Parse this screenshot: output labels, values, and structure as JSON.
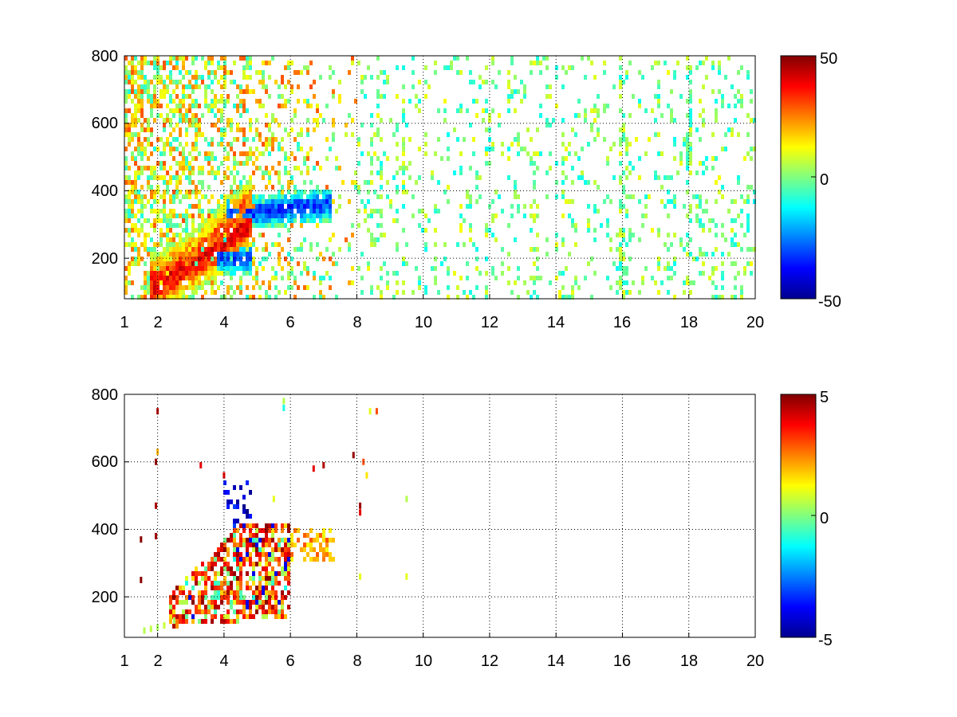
{
  "chart_data": [
    {
      "type": "heatmap",
      "title": "",
      "xlabel": "",
      "ylabel": "",
      "xlim": [
        1,
        20
      ],
      "ylim": [
        80,
        800
      ],
      "grid": "dotted",
      "x_ticks": [
        "1",
        "2",
        "4",
        "6",
        "8",
        "10",
        "12",
        "14",
        "16",
        "18",
        "20"
      ],
      "y_ticks": [
        "200",
        "400",
        "600",
        "800"
      ],
      "colorbar": {
        "range": [
          -50,
          50
        ],
        "ticks": [
          "50",
          "0",
          "-50"
        ],
        "colormap": "jet"
      },
      "seed": 7,
      "ridges": [
        {
          "x_from": 2.0,
          "x_to": 4.8,
          "y_from": 120,
          "y_to": 300,
          "value": 38,
          "width": 70
        },
        {
          "x_from": 3.0,
          "x_to": 4.8,
          "y_from": 190,
          "y_to": 360,
          "value": 30,
          "width": 60
        },
        {
          "x_from": 4.0,
          "x_to": 4.8,
          "y_from": 200,
          "y_to": 200,
          "value": -30,
          "width": 35
        },
        {
          "x_from": 4.3,
          "x_to": 7.2,
          "y_from": 330,
          "y_to": 360,
          "value": -32,
          "width": 35
        }
      ],
      "diffuse_region": {
        "x_from": 1.0,
        "x_to": 8.0,
        "y_from": 80,
        "y_to": 800,
        "value_range": [
          -10,
          30
        ]
      },
      "sparse_value_range": [
        -12,
        12
      ],
      "vertical_streak_x": [
        1.9,
        4.8,
        5.9,
        7.9,
        8.7,
        9.4,
        11.9,
        14.2,
        15.2,
        16.0,
        18.0,
        19.8
      ]
    },
    {
      "type": "heatmap",
      "title": "",
      "xlabel": "",
      "ylabel": "",
      "xlim": [
        1,
        20
      ],
      "ylim": [
        80,
        800
      ],
      "grid": "dotted",
      "x_ticks": [
        "1",
        "2",
        "4",
        "6",
        "8",
        "10",
        "12",
        "14",
        "16",
        "18",
        "20"
      ],
      "y_ticks": [
        "200",
        "400",
        "600",
        "800"
      ],
      "colorbar": {
        "range": [
          -5,
          5
        ],
        "ticks": [
          "5",
          "0",
          "-5"
        ],
        "colormap": "jet"
      },
      "seed": 13,
      "dense_region": {
        "x_from": 2.3,
        "x_to": 6.0,
        "y_from": 110,
        "y_to": 420
      },
      "blue_cluster": {
        "x_from": 4.0,
        "x_to": 4.8,
        "y_from": 400,
        "y_to": 540,
        "value": -4
      },
      "tail_region": {
        "x_from": 6.0,
        "x_to": 7.3,
        "y_from": 310,
        "y_to": 400,
        "value": 2
      },
      "scattered_points": [
        {
          "x": 2.0,
          "y": 750,
          "v": 4.5
        },
        {
          "x": 1.95,
          "y": 600,
          "v": 4.8
        },
        {
          "x": 1.95,
          "y": 470,
          "v": 4.6
        },
        {
          "x": 1.95,
          "y": 380,
          "v": 4.7
        },
        {
          "x": 1.5,
          "y": 250,
          "v": 4.9
        },
        {
          "x": 1.5,
          "y": 370,
          "v": 4.9
        },
        {
          "x": 2.0,
          "y": 630,
          "v": 2.0
        },
        {
          "x": 3.3,
          "y": 590,
          "v": 4.0
        },
        {
          "x": 4.0,
          "y": 560,
          "v": 4.0
        },
        {
          "x": 5.5,
          "y": 490,
          "v": 1.0
        },
        {
          "x": 5.8,
          "y": 780,
          "v": 0.5
        },
        {
          "x": 5.8,
          "y": 760,
          "v": -1.0
        },
        {
          "x": 6.7,
          "y": 580,
          "v": 4.0
        },
        {
          "x": 7.0,
          "y": 590,
          "v": 4.5
        },
        {
          "x": 7.9,
          "y": 620,
          "v": 4.8
        },
        {
          "x": 8.2,
          "y": 600,
          "v": 3.0
        },
        {
          "x": 8.1,
          "y": 470,
          "v": 4.7
        },
        {
          "x": 8.1,
          "y": 450,
          "v": 4.0
        },
        {
          "x": 8.3,
          "y": 560,
          "v": 1.5
        },
        {
          "x": 8.4,
          "y": 750,
          "v": 1.0
        },
        {
          "x": 8.6,
          "y": 750,
          "v": 3.0
        },
        {
          "x": 8.1,
          "y": 260,
          "v": 1.0
        },
        {
          "x": 9.5,
          "y": 490,
          "v": 0.5
        },
        {
          "x": 9.5,
          "y": 260,
          "v": 1.0
        },
        {
          "x": 1.6,
          "y": 100,
          "v": 0.5
        },
        {
          "x": 1.8,
          "y": 105,
          "v": 0.6
        },
        {
          "x": 2.0,
          "y": 110,
          "v": 0.4
        },
        {
          "x": 2.2,
          "y": 115,
          "v": 0.7
        },
        {
          "x": 2.5,
          "y": 130,
          "v": 0.3
        }
      ]
    }
  ]
}
